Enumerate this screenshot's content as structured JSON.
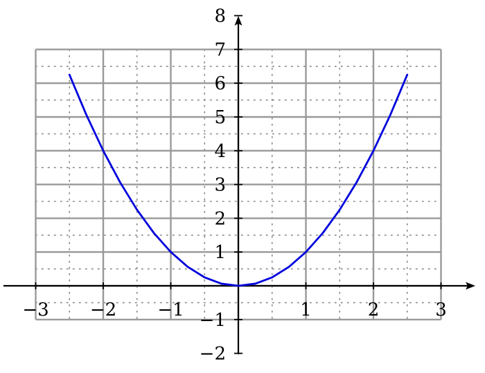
{
  "chart_data": {
    "type": "line",
    "title": "",
    "xlabel": "",
    "ylabel": "",
    "xlim": [
      -3,
      3
    ],
    "ylim": [
      -2,
      8
    ],
    "grid": {
      "major": true,
      "minor": true,
      "major_x_range": [
        -3,
        3
      ],
      "major_y_range": [
        -1,
        7
      ],
      "major_step": 1,
      "minor_step": 0.5
    },
    "x_ticks": [
      -3,
      -2,
      -1,
      1,
      2,
      3
    ],
    "y_ticks": [
      -2,
      -1,
      1,
      2,
      3,
      4,
      5,
      6,
      7,
      8
    ],
    "x_tick_labels": [
      "−3",
      "−2",
      "−1",
      "1",
      "2",
      "3"
    ],
    "y_tick_labels": [
      "−2",
      "−1",
      "1",
      "2",
      "3",
      "4",
      "5",
      "6",
      "7",
      "8"
    ],
    "series": [
      {
        "x": [
          -2.5,
          -2.25,
          -2,
          -1.75,
          -1.5,
          -1.25,
          -1,
          -0.75,
          -0.5,
          -0.25,
          0,
          0.25,
          0.5,
          0.75,
          1,
          1.25,
          1.5,
          1.75,
          2,
          2.25,
          2.5
        ],
        "y": [
          6.25,
          5.0625,
          4,
          3.0625,
          2.25,
          1.5625,
          1,
          0.5625,
          0.25,
          0.0625,
          0,
          0.0625,
          0.25,
          0.5625,
          1,
          1.5625,
          2.25,
          3.0625,
          4,
          5.0625,
          6.25
        ],
        "color": "#0000dd"
      }
    ],
    "colors": {
      "major_grid": "#999999",
      "minor_grid": "#888888",
      "axis": "#000000"
    }
  }
}
